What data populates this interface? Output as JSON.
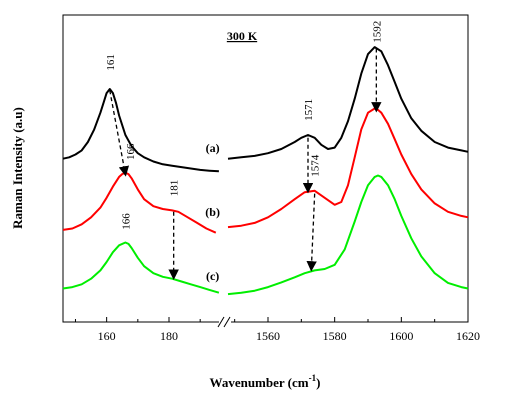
{
  "chart_data": {
    "type": "line",
    "title": "300 K",
    "xlabel_base": "Wavenumber (cm",
    "xlabel_sup": "-1",
    "xlabel_end": ")",
    "ylabel": "Raman Intensity (a.u)",
    "x_break": true,
    "segments": [
      {
        "xlim": [
          146,
          197
        ],
        "ticks": [
          160,
          180
        ]
      },
      {
        "xlim": [
          1548,
          1620
        ],
        "ticks": [
          1560,
          1580,
          1600,
          1620
        ]
      }
    ],
    "series": [
      {
        "name": "(a)",
        "color": "#000000",
        "left": {
          "x": [
            146,
            148,
            150,
            152,
            154,
            156,
            158,
            159,
            160,
            161,
            162,
            163,
            164,
            166,
            168,
            170,
            172,
            175,
            178,
            181,
            184,
            187,
            190,
            193,
            196
          ],
          "y": [
            5.85,
            5.9,
            6.0,
            6.15,
            6.45,
            6.9,
            7.5,
            7.85,
            8.2,
            8.35,
            8.2,
            7.85,
            7.4,
            6.7,
            6.3,
            6.05,
            5.9,
            5.75,
            5.65,
            5.6,
            5.55,
            5.5,
            5.45,
            5.42,
            5.4
          ]
        },
        "right": {
          "x": [
            1548,
            1552,
            1556,
            1560,
            1564,
            1568,
            1570,
            1572,
            1574,
            1576,
            1578,
            1580,
            1582,
            1584,
            1586,
            1588,
            1590,
            1592,
            1594,
            1596,
            1598,
            1600,
            1603,
            1606,
            1610,
            1614,
            1618,
            1620
          ],
          "y": [
            5.85,
            5.9,
            5.95,
            6.05,
            6.2,
            6.45,
            6.6,
            6.7,
            6.6,
            6.35,
            6.2,
            6.25,
            6.6,
            7.2,
            8.0,
            8.9,
            9.6,
            9.85,
            9.7,
            9.2,
            8.6,
            8.0,
            7.3,
            6.85,
            6.45,
            6.25,
            6.15,
            6.1
          ]
        }
      },
      {
        "name": "(b)",
        "color": "#ff0000",
        "left": {
          "x": [
            146,
            149,
            152,
            155,
            158,
            160,
            162,
            164,
            165,
            166,
            167,
            168,
            170,
            172,
            175,
            178,
            181,
            183,
            186,
            189,
            192,
            195
          ],
          "y": [
            3.3,
            3.35,
            3.5,
            3.75,
            4.1,
            4.45,
            4.85,
            5.2,
            5.3,
            5.35,
            5.3,
            5.15,
            4.75,
            4.4,
            4.15,
            4.05,
            4.0,
            3.95,
            3.75,
            3.55,
            3.35,
            3.2
          ]
        },
        "right": {
          "x": [
            1548,
            1552,
            1556,
            1560,
            1564,
            1568,
            1571,
            1574,
            1577,
            1580,
            1582,
            1584,
            1586,
            1588,
            1590,
            1592,
            1593,
            1594,
            1596,
            1598,
            1600,
            1603,
            1606,
            1610,
            1614,
            1618,
            1620
          ],
          "y": [
            3.4,
            3.45,
            3.55,
            3.75,
            4.05,
            4.4,
            4.65,
            4.7,
            4.45,
            4.2,
            4.3,
            4.9,
            5.9,
            6.9,
            7.5,
            7.65,
            7.6,
            7.5,
            7.1,
            6.55,
            6.0,
            5.3,
            4.75,
            4.25,
            3.95,
            3.8,
            3.75
          ]
        }
      },
      {
        "name": "(c)",
        "color": "#00ee00",
        "left": {
          "x": [
            146,
            149,
            152,
            155,
            158,
            160,
            162,
            164,
            166,
            167,
            168,
            170,
            172,
            175,
            178,
            181,
            184,
            187,
            190,
            193,
            196
          ],
          "y": [
            1.2,
            1.25,
            1.35,
            1.55,
            1.85,
            2.15,
            2.5,
            2.75,
            2.85,
            2.8,
            2.65,
            2.3,
            2.0,
            1.75,
            1.62,
            1.55,
            1.45,
            1.35,
            1.25,
            1.15,
            1.05
          ]
        },
        "right": {
          "x": [
            1548,
            1552,
            1556,
            1560,
            1564,
            1568,
            1571,
            1574,
            1577,
            1580,
            1583,
            1586,
            1588,
            1590,
            1592,
            1593,
            1594,
            1596,
            1598,
            1600,
            1603,
            1606,
            1610,
            1614,
            1618,
            1620
          ],
          "y": [
            1.0,
            1.05,
            1.12,
            1.25,
            1.42,
            1.6,
            1.75,
            1.85,
            1.9,
            2.05,
            2.6,
            3.6,
            4.3,
            4.9,
            5.2,
            5.25,
            5.2,
            4.9,
            4.4,
            3.8,
            3.0,
            2.35,
            1.75,
            1.4,
            1.25,
            1.2
          ]
        }
      }
    ],
    "ylim": [
      0,
      11
    ],
    "annotations": [
      {
        "text": "161",
        "segment": 0,
        "x": 161,
        "y": 9.3
      },
      {
        "text": "166",
        "segment": 0,
        "x": 167.5,
        "y": 6.1
      },
      {
        "text": "181",
        "segment": 0,
        "x": 181.5,
        "y": 4.8
      },
      {
        "text": "166",
        "segment": 0,
        "x": 166,
        "y": 3.6
      },
      {
        "text": "1571",
        "segment": 1,
        "x": 1572,
        "y": 7.6
      },
      {
        "text": "1592",
        "segment": 1,
        "x": 1592.5,
        "y": 10.4
      },
      {
        "text": "1574",
        "segment": 1,
        "x": 1574,
        "y": 5.6
      }
    ],
    "arrows": [
      {
        "segment": 0,
        "from": [
          161,
          8.3
        ],
        "to": [
          166,
          5.3
        ]
      },
      {
        "segment": 0,
        "from": [
          181.5,
          3.95
        ],
        "to": [
          181.5,
          1.6
        ]
      },
      {
        "segment": 1,
        "from": [
          1572,
          6.6
        ],
        "to": [
          1572,
          4.7
        ]
      },
      {
        "segment": 1,
        "from": [
          1592.5,
          9.8
        ],
        "to": [
          1592.5,
          7.6
        ]
      },
      {
        "segment": 1,
        "from": [
          1574,
          4.6
        ],
        "to": [
          1573,
          1.9
        ]
      }
    ],
    "curve_labels": [
      {
        "text": "(a)",
        "segment": 0,
        "x": 194,
        "y": 6.1
      },
      {
        "text": "(b)",
        "segment": 0,
        "x": 194,
        "y": 3.8
      },
      {
        "text": "(c)",
        "segment": 0,
        "x": 194,
        "y": 1.5
      }
    ]
  }
}
